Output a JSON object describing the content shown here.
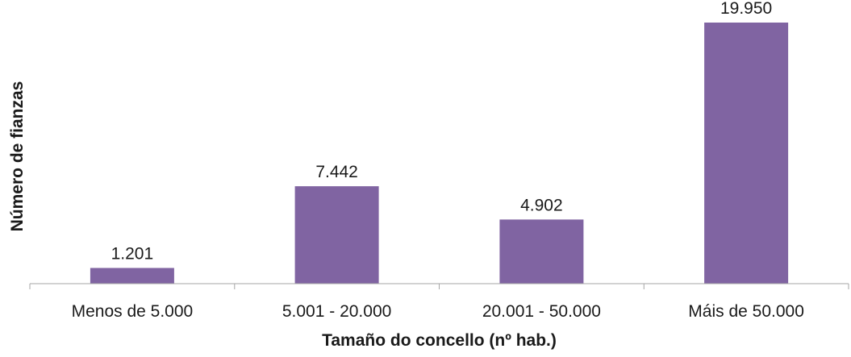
{
  "chart_data": {
    "type": "bar",
    "categories": [
      "Menos de 5.000",
      "5.001 - 20.000",
      "20.001 - 50.000",
      "Máis de 50.000"
    ],
    "values": [
      1201,
      7442,
      4902,
      19950
    ],
    "data_labels": [
      "1.201",
      "7.442",
      "4.902",
      "19.950"
    ],
    "xlabel": "Tamaño do concello (nº hab.)",
    "ylabel": "Número de fianzas",
    "ylim": [
      0,
      19950
    ],
    "grid": false,
    "legend": "none",
    "bar_color": "#8064a2",
    "axis_color": "#a6a6a6"
  }
}
